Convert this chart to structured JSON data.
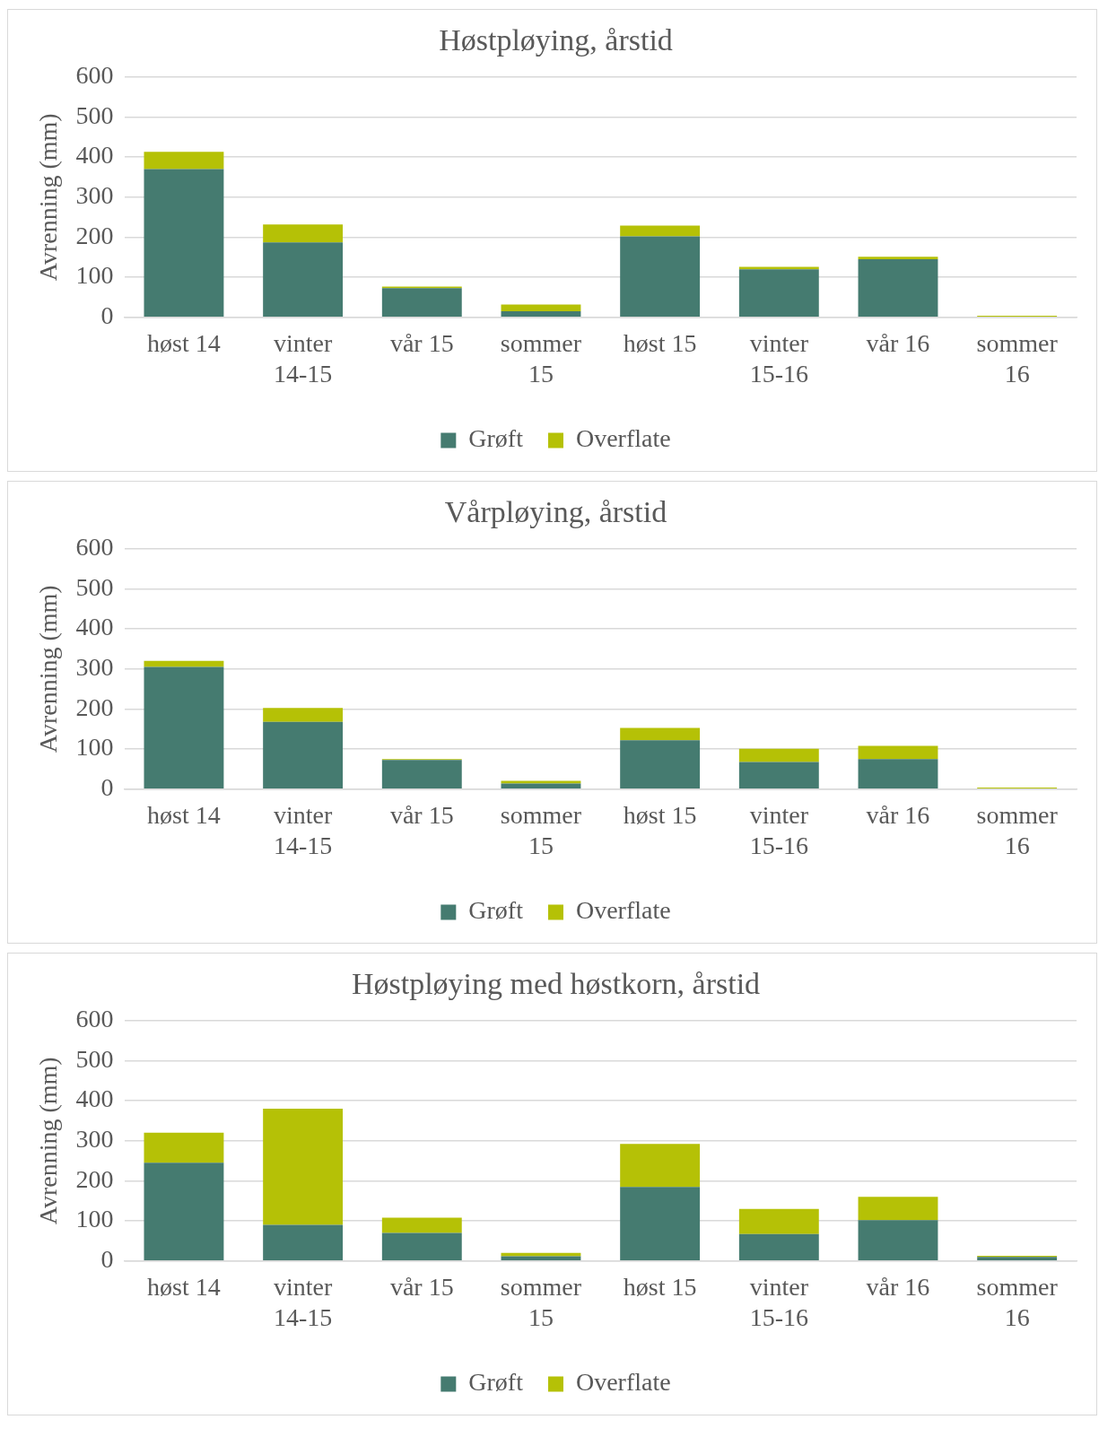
{
  "chart_data": [
    {
      "type": "bar",
      "title": "Høstpløying, årstid",
      "ylabel": "Avrenning (mm)",
      "categories": [
        "høst 14",
        "vinter 14-15",
        "vår 15",
        "sommer 15",
        "høst 15",
        "vinter 15-16",
        "vår 16",
        "sommer 16"
      ],
      "stacked": true,
      "ylim": [
        0,
        600
      ],
      "yticks": [
        0,
        100,
        200,
        300,
        400,
        500,
        600
      ],
      "grid": "y",
      "legend": "bottom",
      "series": [
        {
          "name": "Grøft",
          "color": "#457b70",
          "values": [
            370,
            187,
            73,
            15,
            202,
            120,
            145,
            null
          ]
        },
        {
          "name": "Overflate",
          "color": "#b5c106",
          "values": [
            43,
            45,
            4,
            17,
            27,
            6,
            6,
            4
          ]
        }
      ]
    },
    {
      "type": "bar",
      "title": "Vårpløying, årstid",
      "ylabel": "Avrenning (mm)",
      "categories": [
        "høst 14",
        "vinter 14-15",
        "vår 15",
        "sommer 15",
        "høst 15",
        "vinter 15-16",
        "vår 16",
        "sommer 16"
      ],
      "stacked": true,
      "ylim": [
        0,
        600
      ],
      "yticks": [
        0,
        100,
        200,
        300,
        400,
        500,
        600
      ],
      "grid": "y",
      "legend": "bottom",
      "series": [
        {
          "name": "Grøft",
          "color": "#457b70",
          "values": [
            305,
            168,
            73,
            14,
            122,
            68,
            75,
            null
          ]
        },
        {
          "name": "Overflate",
          "color": "#b5c106",
          "values": [
            15,
            35,
            2,
            7,
            31,
            33,
            33,
            4
          ]
        }
      ]
    },
    {
      "type": "bar",
      "title": "Høstpløying med høstkorn, årstid",
      "ylabel": "Avrenning (mm)",
      "categories": [
        "høst 14",
        "vinter 14-15",
        "vår 15",
        "sommer 15",
        "høst 15",
        "vinter 15-16",
        "vår 16",
        "sommer 16"
      ],
      "stacked": true,
      "ylim": [
        0,
        600
      ],
      "yticks": [
        0,
        100,
        200,
        300,
        400,
        500,
        600
      ],
      "grid": "y",
      "legend": "bottom",
      "series": [
        {
          "name": "Grøft",
          "color": "#457b70",
          "values": [
            245,
            90,
            70,
            12,
            185,
            67,
            102,
            10
          ]
        },
        {
          "name": "Overflate",
          "color": "#b5c106",
          "values": [
            75,
            290,
            38,
            8,
            107,
            63,
            58,
            3
          ]
        }
      ]
    }
  ]
}
